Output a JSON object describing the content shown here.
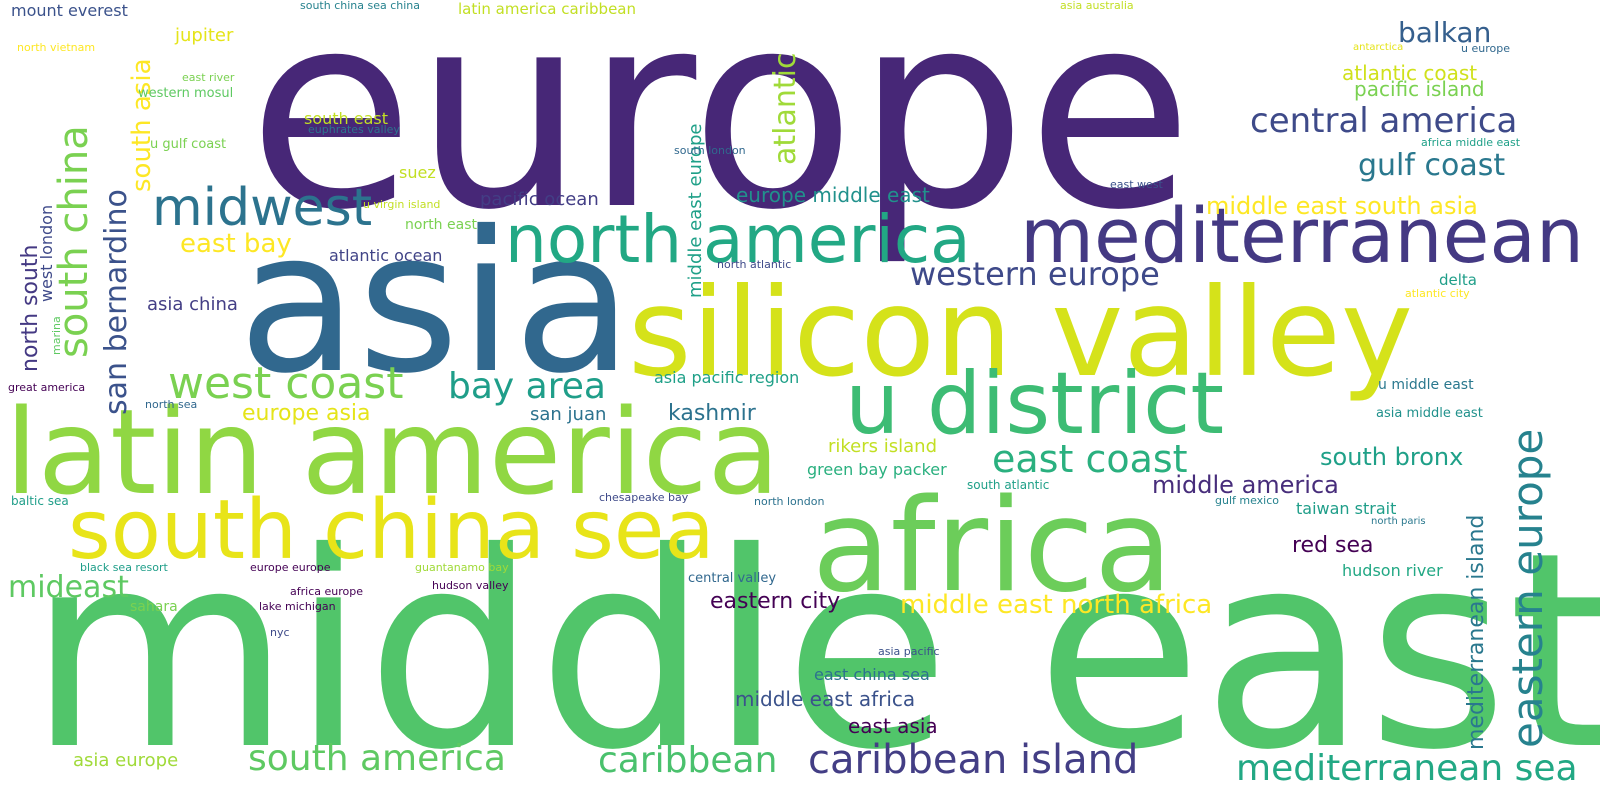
{
  "words": [
    {
      "text": "europe",
      "color": "#472777"
    },
    {
      "text": "middle east",
      "color": "#51c56a"
    },
    {
      "text": "asia",
      "color": "#31688e"
    },
    {
      "text": "silicon valley",
      "color": "#d5e21a"
    },
    {
      "text": "latin america",
      "color": "#90d743"
    },
    {
      "text": "africa",
      "color": "#6ccd5a"
    },
    {
      "text": "south china sea",
      "color": "#e8e419"
    },
    {
      "text": "u district",
      "color": "#3dbc74"
    },
    {
      "text": "mediterranean",
      "color": "#443983"
    },
    {
      "text": "north america",
      "color": "#22a884"
    },
    {
      "text": "midwest",
      "color": "#2c738e"
    },
    {
      "text": "west coast",
      "color": "#7ad151"
    },
    {
      "text": "south china",
      "color": "#7ad151"
    },
    {
      "text": "san bernardino",
      "color": "#3b528b"
    },
    {
      "text": "eastern europe",
      "color": "#26828e"
    },
    {
      "text": "caribbean island",
      "color": "#433e85"
    },
    {
      "text": "south america",
      "color": "#5ec962"
    },
    {
      "text": "caribbean",
      "color": "#4ac16d"
    },
    {
      "text": "mediterranean sea",
      "color": "#22a884"
    },
    {
      "text": "central america",
      "color": "#3e4a89"
    },
    {
      "text": "east coast",
      "color": "#2ab07f"
    },
    {
      "text": "bay area",
      "color": "#1f9e89"
    },
    {
      "text": "western europe",
      "color": "#3e4989"
    },
    {
      "text": "gulf coast",
      "color": "#2a788e"
    },
    {
      "text": "atlantic",
      "color": "#a0da39"
    },
    {
      "text": "south asia",
      "color": "#fde725"
    },
    {
      "text": "mideast",
      "color": "#5ec962"
    },
    {
      "text": "balkan",
      "color": "#355f8d"
    },
    {
      "text": "middle east north africa",
      "color": "#fde725"
    },
    {
      "text": "middle east south asia",
      "color": "#fde725"
    },
    {
      "text": "mediterranean island",
      "color": "#2a788e"
    },
    {
      "text": "east bay",
      "color": "#fde725"
    },
    {
      "text": "south bronx",
      "color": "#1fa088"
    },
    {
      "text": "middle america",
      "color": "#472d7b"
    },
    {
      "text": "north south",
      "color": "#443983"
    },
    {
      "text": "red sea",
      "color": "#440154"
    },
    {
      "text": "eastern city",
      "color": "#440154"
    },
    {
      "text": "atlantic coast",
      "color": "#d0e11c"
    },
    {
      "text": "pacific island",
      "color": "#7ad151"
    },
    {
      "text": "middle east europe",
      "color": "#1fa088"
    },
    {
      "text": "europe asia",
      "color": "#e5e419"
    },
    {
      "text": "kashmir",
      "color": "#2c728e"
    },
    {
      "text": "europe middle east",
      "color": "#21918c"
    },
    {
      "text": "middle east africa",
      "color": "#3b528b"
    },
    {
      "text": "east asia",
      "color": "#440154"
    },
    {
      "text": "pacific ocean",
      "color": "#433e85"
    },
    {
      "text": "san juan",
      "color": "#2c728e"
    },
    {
      "text": "asia europe",
      "color": "#a0da39"
    },
    {
      "text": "west london",
      "color": "#3e4989"
    },
    {
      "text": "asia china",
      "color": "#433e85"
    },
    {
      "text": "atlantic ocean",
      "color": "#414487"
    },
    {
      "text": "east china sea",
      "color": "#2c728e"
    },
    {
      "text": "rikers island",
      "color": "#c2df23"
    },
    {
      "text": "green bay packer",
      "color": "#2ab07f"
    },
    {
      "text": "asia pacific region",
      "color": "#1fa088"
    },
    {
      "text": "hudson river",
      "color": "#22a884"
    },
    {
      "text": "taiwan strait",
      "color": "#1f9e89"
    },
    {
      "text": "mount everest",
      "color": "#3b528b"
    },
    {
      "text": "jupiter",
      "color": "#e5e419"
    },
    {
      "text": "south east",
      "color": "#c2df23"
    },
    {
      "text": "suez",
      "color": "#c2df23"
    },
    {
      "text": "sahara",
      "color": "#7ad151"
    },
    {
      "text": "latin america caribbean",
      "color": "#c2df23"
    },
    {
      "text": "central valley",
      "color": "#31688e"
    },
    {
      "text": "delta",
      "color": "#1f9e89"
    },
    {
      "text": "north east",
      "color": "#7ad151"
    },
    {
      "text": "u middle east",
      "color": "#2a788e"
    },
    {
      "text": "asia middle east",
      "color": "#21918c"
    },
    {
      "text": "western mosul",
      "color": "#5ec962"
    },
    {
      "text": "u gulf coast",
      "color": "#7ad151"
    },
    {
      "text": "baltic sea",
      "color": "#1f9e89"
    },
    {
      "text": "north atlantic",
      "color": "#3e4a89"
    },
    {
      "text": "south london",
      "color": "#31688e"
    },
    {
      "text": "great america",
      "color": "#440154"
    },
    {
      "text": "marina",
      "color": "#5ec962"
    },
    {
      "text": "north sea",
      "color": "#31688e"
    },
    {
      "text": "east river",
      "color": "#7ad151"
    },
    {
      "text": "euphrates valley",
      "color": "#2c738e"
    },
    {
      "text": "u virgin island",
      "color": "#c2df23"
    },
    {
      "text": "south china sea china",
      "color": "#26828e"
    },
    {
      "text": "asia australia",
      "color": "#c2df23"
    },
    {
      "text": "north vietnam",
      "color": "#fde725"
    },
    {
      "text": "antarctica",
      "color": "#e5e419"
    },
    {
      "text": "u europe",
      "color": "#31688e"
    },
    {
      "text": "africa middle east",
      "color": "#1fa088"
    },
    {
      "text": "east west",
      "color": "#3b528b"
    },
    {
      "text": "atlantic city",
      "color": "#fde725"
    },
    {
      "text": "south atlantic",
      "color": "#1fa088"
    },
    {
      "text": "north london",
      "color": "#2c728e"
    },
    {
      "text": "north paris",
      "color": "#2a788e"
    },
    {
      "text": "gulf mexico",
      "color": "#26828e"
    },
    {
      "text": "chesapeake bay",
      "color": "#3e4989"
    },
    {
      "text": "guantanamo bay",
      "color": "#a0da39"
    },
    {
      "text": "black sea resort",
      "color": "#1f9e89"
    },
    {
      "text": "europe europe",
      "color": "#440154"
    },
    {
      "text": "africa europe",
      "color": "#440154"
    },
    {
      "text": "hudson valley",
      "color": "#440154"
    },
    {
      "text": "lake michigan",
      "color": "#440154"
    },
    {
      "text": "nyc",
      "color": "#3e4a89"
    },
    {
      "text": "asia pacific",
      "color": "#3b528b"
    }
  ]
}
